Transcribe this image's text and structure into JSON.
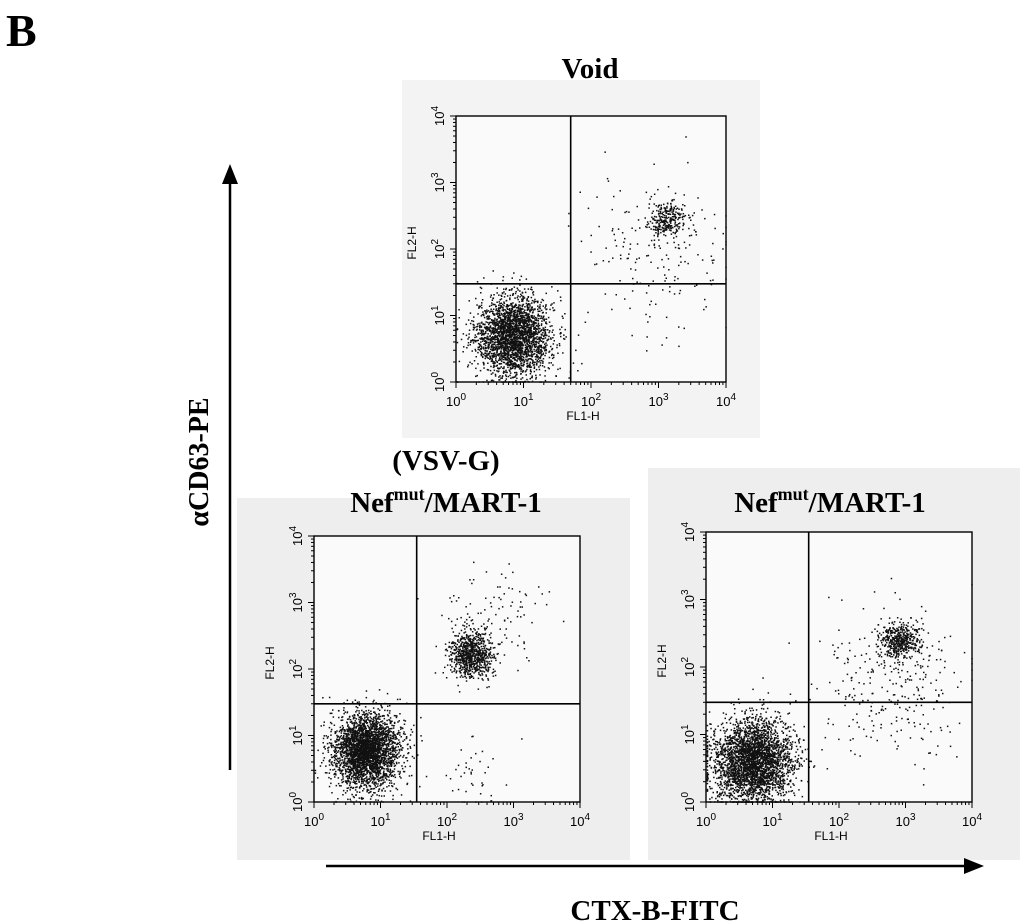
{
  "figure": {
    "panel_letter": "B",
    "y_axis_title": "αCD63-PE",
    "x_axis_title": "CTX-B-FITC"
  },
  "chart_data": [
    {
      "type": "scatter",
      "title_parts": [
        "Void"
      ],
      "xlabel": "FL1-H",
      "ylabel": "FL2-H",
      "x_scale": "log",
      "y_scale": "log",
      "xlim": [
        1,
        10000
      ],
      "ylim": [
        1,
        10000
      ],
      "x_ticks": [
        "10",
        "10",
        "10",
        "10",
        "10"
      ],
      "x_tick_exp": [
        "0",
        "1",
        "2",
        "3",
        "4"
      ],
      "y_ticks": [
        "10",
        "10",
        "10",
        "10",
        "10"
      ],
      "y_tick_exp": [
        "0",
        "1",
        "2",
        "3",
        "4"
      ],
      "quadrant_gate": {
        "x": 50,
        "y": 30
      },
      "populations": [
        {
          "name": "double-negative",
          "center": [
            7,
            5
          ],
          "spread_log": [
            0.28,
            0.3
          ],
          "count": 2600
        },
        {
          "name": "double-positive",
          "center": [
            1300,
            280
          ],
          "spread_log": [
            0.14,
            0.12
          ],
          "count": 260
        },
        {
          "name": "scatter",
          "center": [
            900,
            120
          ],
          "spread_log": [
            0.55,
            0.55
          ],
          "count": 200
        }
      ]
    },
    {
      "type": "scatter",
      "title_parts": [
        "(VSV-G)",
        "Nef",
        "mut",
        "/MART-1"
      ],
      "xlabel": "FL1-H",
      "ylabel": "FL2-H",
      "x_scale": "log",
      "y_scale": "log",
      "xlim": [
        1,
        10000
      ],
      "ylim": [
        1,
        10000
      ],
      "x_ticks": [
        "10",
        "10",
        "10",
        "10",
        "10"
      ],
      "x_tick_exp": [
        "0",
        "1",
        "2",
        "3",
        "4"
      ],
      "y_ticks": [
        "10",
        "10",
        "10",
        "10",
        "10"
      ],
      "y_tick_exp": [
        "0",
        "1",
        "2",
        "3",
        "4"
      ],
      "quadrant_gate": {
        "x": 35,
        "y": 30
      },
      "populations": [
        {
          "name": "double-negative",
          "center": [
            6,
            6
          ],
          "spread_log": [
            0.25,
            0.28
          ],
          "count": 3000
        },
        {
          "name": "double-positive",
          "center": [
            220,
            170
          ],
          "spread_log": [
            0.16,
            0.18
          ],
          "count": 800
        },
        {
          "name": "scatter",
          "center": [
            600,
            700
          ],
          "spread_log": [
            0.4,
            0.35
          ],
          "count": 90
        },
        {
          "name": "low-scatter",
          "center": [
            250,
            3
          ],
          "spread_log": [
            0.3,
            0.3
          ],
          "count": 40
        }
      ]
    },
    {
      "type": "scatter",
      "title_parts": [
        "Nef",
        "mut",
        "/MART-1"
      ],
      "xlabel": "FL1-H",
      "ylabel": "FL2-H",
      "x_scale": "log",
      "y_scale": "log",
      "xlim": [
        1,
        10000
      ],
      "ylim": [
        1,
        10000
      ],
      "x_ticks": [
        "10",
        "10",
        "10",
        "10",
        "10"
      ],
      "x_tick_exp": [
        "0",
        "1",
        "2",
        "3",
        "4"
      ],
      "y_ticks": [
        "10",
        "10",
        "10",
        "10",
        "10"
      ],
      "y_tick_exp": [
        "0",
        "1",
        "2",
        "3",
        "4"
      ],
      "quadrant_gate": {
        "x": 35,
        "y": 30
      },
      "populations": [
        {
          "name": "double-negative",
          "center": [
            5,
            4
          ],
          "spread_log": [
            0.3,
            0.32
          ],
          "count": 3000
        },
        {
          "name": "double-positive",
          "center": [
            800,
            250
          ],
          "spread_log": [
            0.16,
            0.14
          ],
          "count": 450
        },
        {
          "name": "scatter",
          "center": [
            700,
            60
          ],
          "spread_log": [
            0.55,
            0.55
          ],
          "count": 280
        }
      ]
    }
  ]
}
